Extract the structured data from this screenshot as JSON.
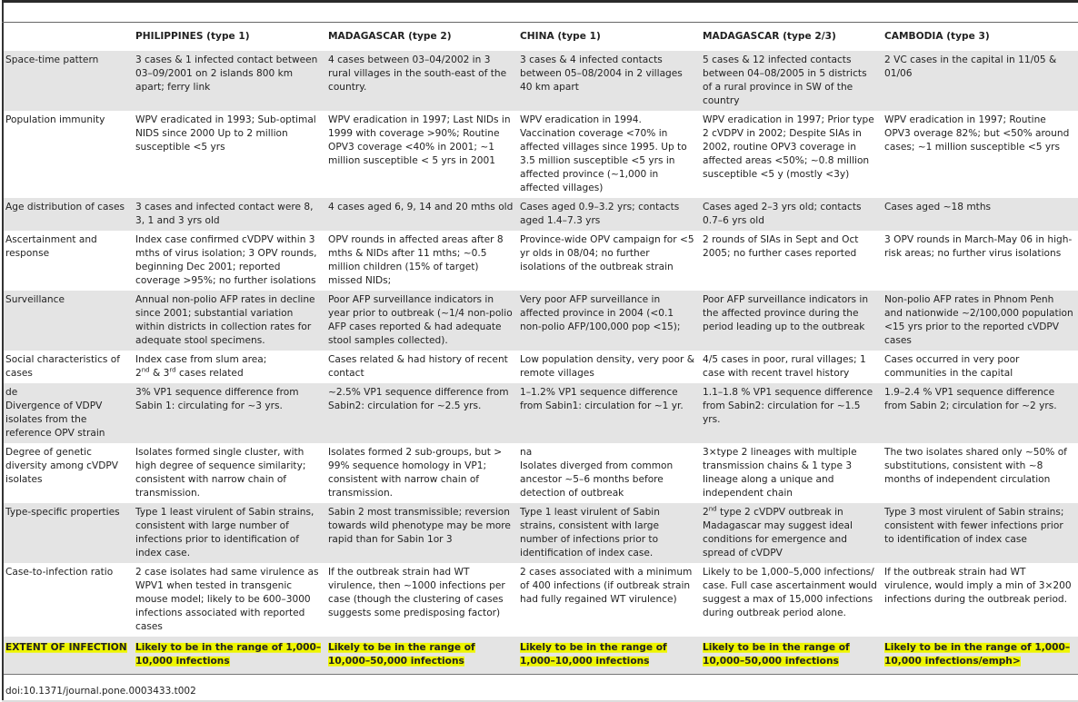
{
  "headers": [
    "",
    "PHILIPPINES (type 1)",
    "MADAGASCAR (type 2)",
    "CHINA (type 1)",
    "MADAGASCAR (type 2/3)",
    "CAMBODIA (type 3)"
  ],
  "rows": [
    {
      "label": "Space-time pattern",
      "cells": [
        "3 cases & 1 infected contact between 03–09/2001 on 2 islands 800 km apart; ferry link",
        "4 cases between 03–04/2002 in 3 rural villages in the south-east of the country.",
        "3 cases & 4 infected contacts between 05–08/2004 in 2 villages 40 km apart",
        "5 cases & 12 infected contacts between 04–08/2005 in 5 districts of a rural province in SW of the country",
        "2 VC cases in the capital in 11/05 & 01/06"
      ]
    },
    {
      "label": "Population immunity",
      "cells": [
        "WPV eradicated in 1993; Sub-optimal NIDS since 2000 Up to 2 million susceptible <5 yrs",
        "WPV eradication in 1997; Last NIDs in 1999 with coverage >90%; Routine OPV3 coverage <40% in 2001; ~1 million susceptible < 5 yrs in 2001",
        "WPV eradication in 1994. Vaccination coverage <70% in affected villages since 1995. Up to 3.5 million susceptible <5 yrs in affected province (~1,000 in affected villages)",
        "WPV eradication in 1997; Prior type 2 cVDPV in 2002; Despite SIAs in 2002, routine OPV3 coverage in affected areas <50%; ~0.8 million susceptible <5 y (mostly <3y)",
        "WPV eradication in 1997; Routine OPV3 overage 82%; but <50% around cases; ~1 million susceptible <5 yrs"
      ]
    },
    {
      "label": "Age distribution of cases",
      "cells": [
        "3 cases and infected contact were 8, 3, 1 and 3 yrs old",
        "4 cases aged 6, 9, 14 and 20 mths old",
        "Cases aged 0.9–3.2 yrs; contacts aged 1.4–7.3 yrs",
        "Cases aged 2–3 yrs old; contacts 0.7–6 yrs old",
        "Cases aged ~18 mths"
      ]
    },
    {
      "label": "Ascertainment and response",
      "cells": [
        "Index case confirmed cVDPV within 3 mths of virus isolation; 3 OPV rounds, beginning Dec 2001; reported coverage >95%; no further isolations",
        "OPV rounds in affected areas after 8 mths & NIDs after 11 mths; ~0.5 million children (15% of target) missed NIDs;",
        "Province-wide OPV campaign for <5 yr olds in 08/04; no further isolations of the outbreak strain",
        "2 rounds of SIAs in Sept and Oct 2005; no further cases reported",
        "3 OPV rounds in March-May 06 in high-risk areas; no further virus isolations"
      ]
    },
    {
      "label": "Surveillance",
      "cells": [
        "Annual non-polio AFP rates in decline since 2001; substantial variation within districts in collection rates for adequate stool specimens.",
        "Poor AFP surveillance indicators in year prior to outbreak (~1/4 non-polio AFP cases reported & had adequate stool samples collected).",
        "Very poor AFP surveillance in affected province in 2004 (<0.1 non-polio AFP/100,000 pop <15);",
        "Poor AFP surveillance indicators in the affected province during the period leading up to the outbreak",
        "Non-polio AFP rates in Phnom Penh and nationwide ~2/100,000 population <15 yrs prior to the reported cVDPV cases"
      ]
    },
    {
      "label": "Social characteristics of cases",
      "cells": [
        "Index case from slum area;",
        "Cases related & had history of recent contact",
        "Low population density, very poor & remote villages",
        "4/5 cases in poor, rural villages; 1 case with recent travel history",
        "Cases occurred in very poor communities in the capital"
      ],
      "sup_line": {
        "a": "2",
        "a_sup": "nd",
        "mid": " & 3",
        "b_sup": "rd",
        "end": " cases related"
      }
    },
    {
      "label": "de",
      "label2": "Divergence of VDPV isolates from the reference OPV strain",
      "cells": [
        "3% VP1 sequence difference from Sabin 1: circulating for ~3 yrs.",
        "~2.5% VP1 sequence difference from Sabin2: circulation for ~2.5 yrs.",
        "1–1.2% VP1 sequence difference from Sabin1: circulation for ~1 yr.",
        "1.1–1.8 % VP1 sequence difference from Sabin2: circulation for ~1.5 yrs.",
        "1.9–2.4 % VP1 sequence difference from Sabin 2; circulation for ~2 yrs."
      ]
    },
    {
      "label": "Degree of genetic diversity among cVDPV isolates",
      "cells": [
        "Isolates formed single cluster, with high degree of sequence similarity; consistent with narrow chain of transmission.",
        "Isolates formed 2 sub-groups, but > 99% sequence homology in VP1; consistent with narrow chain of transmission.",
        "na",
        "3×type 2 lineages with multiple transmission chains & 1 type 3 lineage along a unique and independent chain",
        "The two isolates shared only ~50% of substitutions, consistent with ~8 months of independent circulation"
      ],
      "china_line2": "Isolates diverged from common ancestor ~5–6 months before detection of outbreak"
    },
    {
      "label": "Type-specific properties",
      "cells": [
        "Type 1 least virulent of Sabin strains, consistent with large number of infections prior to identification of index case.",
        "Sabin 2 most transmissible; reversion towards wild phenotype may be more rapid than for Sabin 1or 3",
        "Type 1 least virulent of Sabin strains, consistent with large number of infections prior to identification of index case.",
        "type 2 cVDPV outbreak in Madagascar may suggest ideal conditions for emergence and spread of cVDPV",
        "Type 3 most virulent of Sabin strains; consistent with fewer infections prior to identification of index case"
      ],
      "mad23_prefix": "2",
      "mad23_sup": "nd"
    },
    {
      "label": "Case-to-infection ratio",
      "cells": [
        "2 case isolates had same virulence as WPV1 when tested in transgenic mouse model; likely to be 600–3000 infections associated with reported cases",
        "If the outbreak strain had WT virulence, then ~1000 infections per case (though the clustering of cases suggests some predisposing factor)",
        "2 cases associated with a minimum of 400 infections (if outbreak strain had fully regained WT virulence)",
        "Likely to be 1,000–5,000 infections/ case. Full case ascertainment would suggest a max of 15,000 infections during outbreak period alone.",
        "If the outbreak strain had WT virulence, would imply a min of 3×200 infections during the outbreak period."
      ]
    }
  ],
  "extent": {
    "label": "EXTENT OF INFECTION",
    "cells": [
      "Likely to be in the range of 1,000–10,000 infections",
      "Likely to be in the range of 10,000–50,000 infections",
      "Likely to be in the range of 1,000–10,000 infections",
      "Likely to be in the range of 10,000–50,000 infections",
      "Likely to be in the range of 1,000–10,000 infections/emph>"
    ]
  },
  "highlight_color": "#eef500",
  "doi": "doi:10.1371/journal.pone.0003433.t002"
}
